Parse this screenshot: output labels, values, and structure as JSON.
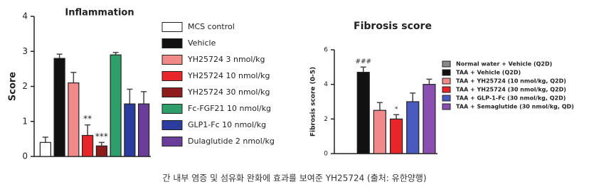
{
  "chart_data": [
    {
      "type": "bar",
      "title": "Inflammation",
      "y_label": "Score",
      "categories": [
        "MCS control",
        "Vehicle",
        "YH25724 3 nmol/kg",
        "YH25724 10 nmol/kg",
        "YH25724 30 nmol/kg",
        "Fc-FGF21 10 nmol/kg",
        "GLP1-Fc 10 nmol/kg",
        "Dulaglutide 2 nmol/kg"
      ],
      "values": [
        0.4,
        2.8,
        2.1,
        0.6,
        0.3,
        2.9,
        1.5,
        1.5
      ],
      "errors": [
        0.15,
        0.12,
        0.3,
        0.3,
        0.1,
        0.07,
        0.42,
        0.35
      ],
      "annotations": [
        null,
        null,
        null,
        "**",
        "***",
        null,
        null,
        null
      ],
      "colors": [
        "#ffffff",
        "#111111",
        "#f08a8a",
        "#e8262a",
        "#8e1c1c",
        "#2e9e6a",
        "#2a3d9e",
        "#6a3d9a"
      ],
      "ylim": [
        0,
        4
      ],
      "yticks": [
        0,
        1,
        2,
        3,
        4
      ]
    },
    {
      "type": "bar",
      "title": "Fibrosis score",
      "y_label": "Fibrosis score (0-5)",
      "categories": [
        "Normal water + Vehicle (Q2D)",
        "TAA + Vehicle  (Q2D)",
        "TAA + YH25724 (10 nmol/kg, Q2D)",
        "TAA + YH25724 (30 nmol/kg, Q2D)",
        "TAA + GLP-1-Fc (30 nmol/kg, Q2D)",
        "TAA + Semaglutide (30 nmol/kg, QD)"
      ],
      "values": [
        0,
        4.7,
        2.5,
        2.0,
        3.0,
        4.0
      ],
      "errors": [
        0,
        0.3,
        0.45,
        0.25,
        0.5,
        0.3
      ],
      "annotations": [
        null,
        "###",
        null,
        "*",
        null,
        null
      ],
      "colors": [
        "#888888",
        "#111111",
        "#f08a8a",
        "#e8262a",
        "#4a5bbf",
        "#8a4fb0"
      ],
      "ylim": [
        0,
        6
      ],
      "yticks": [
        0,
        2,
        4,
        6
      ]
    }
  ],
  "caption": "간 내부 염증 및 섬유화 완화에 효과를 보여준 YH25724 (출처: 유한양행)"
}
